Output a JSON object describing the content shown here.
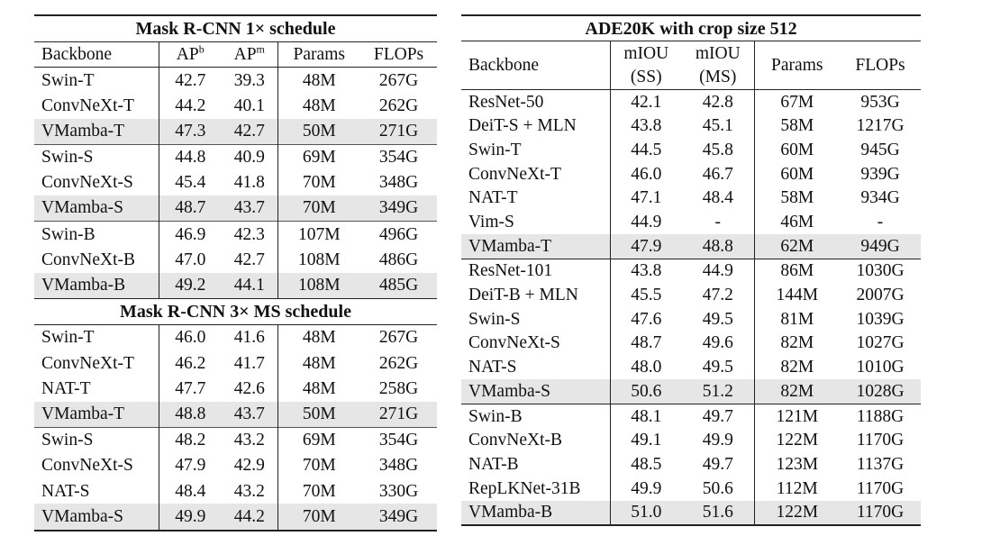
{
  "left": {
    "title": "Mask R-CNN 1× schedule",
    "subtitle": "Mask R-CNN 3× MS schedule",
    "headers": {
      "backbone": "Backbone",
      "ap_b_base": "AP",
      "ap_b_sup": "b",
      "ap_m_base": "AP",
      "ap_m_sup": "m",
      "params": "Params",
      "flops": "FLOPs"
    },
    "rows": [
      {
        "backbone": "Swin-T",
        "apb": "42.7",
        "apm": "39.3",
        "params": "48M",
        "flops": "267G"
      },
      {
        "backbone": "ConvNeXt-T",
        "apb": "44.2",
        "apm": "40.1",
        "params": "48M",
        "flops": "262G"
      },
      {
        "backbone": "VMamba-T",
        "apb": "47.3",
        "apm": "42.7",
        "params": "50M",
        "flops": "271G"
      },
      {
        "backbone": "Swin-S",
        "apb": "44.8",
        "apm": "40.9",
        "params": "69M",
        "flops": "354G"
      },
      {
        "backbone": "ConvNeXt-S",
        "apb": "45.4",
        "apm": "41.8",
        "params": "70M",
        "flops": "348G"
      },
      {
        "backbone": "VMamba-S",
        "apb": "48.7",
        "apm": "43.7",
        "params": "70M",
        "flops": "349G"
      },
      {
        "backbone": "Swin-B",
        "apb": "46.9",
        "apm": "42.3",
        "params": "107M",
        "flops": "496G"
      },
      {
        "backbone": "ConvNeXt-B",
        "apb": "47.0",
        "apm": "42.7",
        "params": "108M",
        "flops": "486G"
      },
      {
        "backbone": "VMamba-B",
        "apb": "49.2",
        "apm": "44.1",
        "params": "108M",
        "flops": "485G"
      },
      {
        "backbone": "Swin-T",
        "apb": "46.0",
        "apm": "41.6",
        "params": "48M",
        "flops": "267G"
      },
      {
        "backbone": "ConvNeXt-T",
        "apb": "46.2",
        "apm": "41.7",
        "params": "48M",
        "flops": "262G"
      },
      {
        "backbone": "NAT-T",
        "apb": "47.7",
        "apm": "42.6",
        "params": "48M",
        "flops": "258G"
      },
      {
        "backbone": "VMamba-T",
        "apb": "48.8",
        "apm": "43.7",
        "params": "50M",
        "flops": "271G"
      },
      {
        "backbone": "Swin-S",
        "apb": "48.2",
        "apm": "43.2",
        "params": "69M",
        "flops": "354G"
      },
      {
        "backbone": "ConvNeXt-S",
        "apb": "47.9",
        "apm": "42.9",
        "params": "70M",
        "flops": "348G"
      },
      {
        "backbone": "NAT-S",
        "apb": "48.4",
        "apm": "43.2",
        "params": "70M",
        "flops": "330G"
      },
      {
        "backbone": "VMamba-S",
        "apb": "49.9",
        "apm": "44.2",
        "params": "70M",
        "flops": "349G"
      }
    ]
  },
  "right": {
    "title": "ADE20K with crop size 512",
    "headers": {
      "backbone": "Backbone",
      "miou_ss_1": "mIOU",
      "miou_ss_2": "(SS)",
      "miou_ms_1": "mIOU",
      "miou_ms_2": "(MS)",
      "params": "Params",
      "flops": "FLOPs"
    },
    "rows": [
      {
        "backbone": "ResNet-50",
        "ss": "42.1",
        "ms": "42.8",
        "params": "67M",
        "flops": "953G"
      },
      {
        "backbone": "DeiT-S + MLN",
        "ss": "43.8",
        "ms": "45.1",
        "params": "58M",
        "flops": "1217G"
      },
      {
        "backbone": "Swin-T",
        "ss": "44.5",
        "ms": "45.8",
        "params": "60M",
        "flops": "945G"
      },
      {
        "backbone": "ConvNeXt-T",
        "ss": "46.0",
        "ms": "46.7",
        "params": "60M",
        "flops": "939G"
      },
      {
        "backbone": "NAT-T",
        "ss": "47.1",
        "ms": "48.4",
        "params": "58M",
        "flops": "934G"
      },
      {
        "backbone": "Vim-S",
        "ss": "44.9",
        "ms": "-",
        "params": "46M",
        "flops": "-"
      },
      {
        "backbone": "VMamba-T",
        "ss": "47.9",
        "ms": "48.8",
        "params": "62M",
        "flops": "949G"
      },
      {
        "backbone": "ResNet-101",
        "ss": "43.8",
        "ms": "44.9",
        "params": "86M",
        "flops": "1030G"
      },
      {
        "backbone": "DeiT-B + MLN",
        "ss": "45.5",
        "ms": "47.2",
        "params": "144M",
        "flops": "2007G"
      },
      {
        "backbone": "Swin-S",
        "ss": "47.6",
        "ms": "49.5",
        "params": "81M",
        "flops": "1039G"
      },
      {
        "backbone": "ConvNeXt-S",
        "ss": "48.7",
        "ms": "49.6",
        "params": "82M",
        "flops": "1027G"
      },
      {
        "backbone": "NAT-S",
        "ss": "48.0",
        "ms": "49.5",
        "params": "82M",
        "flops": "1010G"
      },
      {
        "backbone": "VMamba-S",
        "ss": "50.6",
        "ms": "51.2",
        "params": "82M",
        "flops": "1028G"
      },
      {
        "backbone": "Swin-B",
        "ss": "48.1",
        "ms": "49.7",
        "params": "121M",
        "flops": "1188G"
      },
      {
        "backbone": "ConvNeXt-B",
        "ss": "49.1",
        "ms": "49.9",
        "params": "122M",
        "flops": "1170G"
      },
      {
        "backbone": "NAT-B",
        "ss": "48.5",
        "ms": "49.7",
        "params": "123M",
        "flops": "1137G"
      },
      {
        "backbone": "RepLKNet-31B",
        "ss": "49.9",
        "ms": "50.6",
        "params": "112M",
        "flops": "1170G"
      },
      {
        "backbone": "VMamba-B",
        "ss": "51.0",
        "ms": "51.6",
        "params": "122M",
        "flops": "1170G"
      }
    ]
  }
}
